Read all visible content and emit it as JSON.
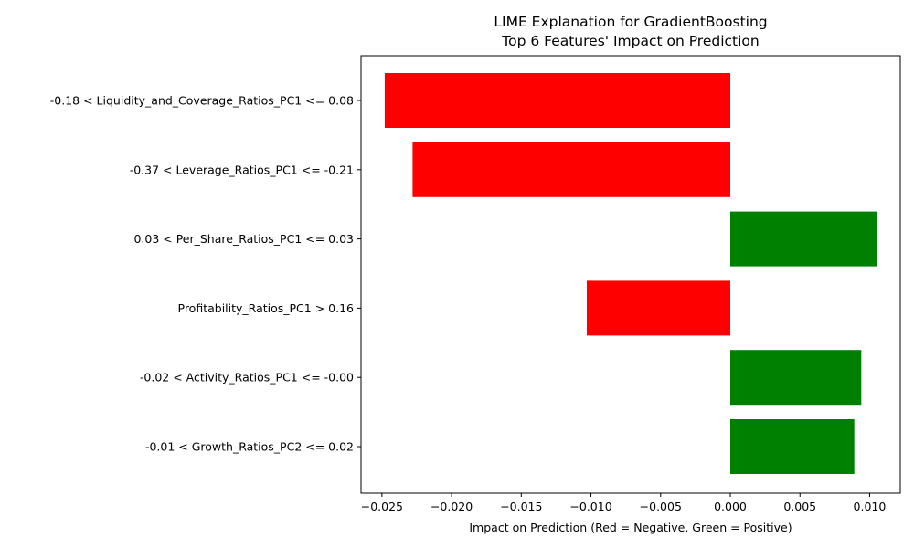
{
  "chart_data": {
    "type": "bar",
    "orientation": "horizontal",
    "title": "LIME Explanation for GradientBoosting",
    "subtitle": "Top 6 Features' Impact on Prediction",
    "xlabel": "Impact on Prediction (Red = Negative, Green = Positive)",
    "ylabel": "",
    "xlim": [
      -0.0265,
      0.0122
    ],
    "x_ticks": [
      -0.025,
      -0.02,
      -0.015,
      -0.01,
      -0.005,
      0.0,
      0.005,
      0.01
    ],
    "x_tick_labels": [
      "−0.025",
      "−0.020",
      "−0.015",
      "−0.010",
      "−0.005",
      "0.000",
      "0.005",
      "0.010"
    ],
    "grid": false,
    "legend": "none",
    "categories": [
      "-0.18 < Liquidity_and_Coverage_Ratios_PC1 <= 0.08",
      "-0.37 < Leverage_Ratios_PC1 <= -0.21",
      "0.03 < Per_Share_Ratios_PC1 <= 0.03",
      "Profitability_Ratios_PC1 > 0.16",
      "-0.02 < Activity_Ratios_PC1 <= -0.00",
      "-0.01 < Growth_Ratios_PC2 <= 0.02"
    ],
    "values": [
      -0.0248,
      -0.0228,
      0.0105,
      -0.0103,
      0.0094,
      0.0089
    ],
    "colors": {
      "negative": "#ff0000",
      "positive": "#008000"
    }
  }
}
